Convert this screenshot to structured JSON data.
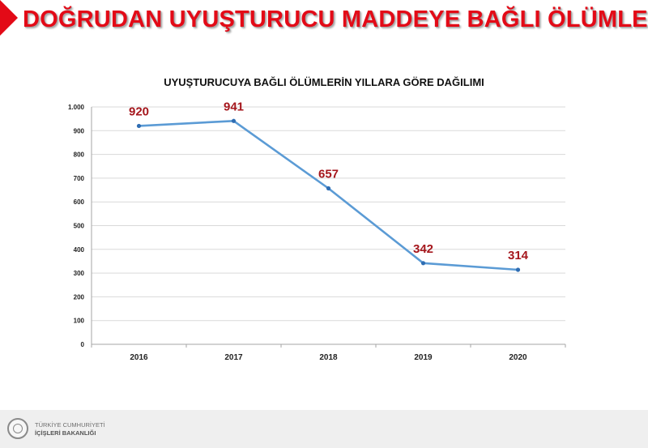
{
  "slide": {
    "title": "DOĞRUDAN UYUŞTURUCU MADDEYE BAĞLI ÖLÜMLER",
    "accent_color": "#e30a17"
  },
  "footer": {
    "line1": "TÜRKİYE CUMHURİYETİ",
    "line2": "İÇİŞLERİ BAKANLIĞI",
    "logo_icon": "ministry-seal-icon"
  },
  "chart_data": {
    "type": "line",
    "title": "UYUŞTURUCUYA BAĞLI ÖLÜMLERİN YILLARA GÖRE DAĞILIMI",
    "categories": [
      "2016",
      "2017",
      "2018",
      "2019",
      "2020"
    ],
    "series": [
      {
        "values": [
          920,
          941,
          657,
          342,
          314
        ],
        "color": "#5b9bd5"
      }
    ],
    "data_labels": [
      "920",
      "941",
      "657",
      "342",
      "314"
    ],
    "data_label_color": "#a5161c",
    "ylim": [
      0,
      1000
    ],
    "yticks": [
      0,
      100,
      200,
      300,
      400,
      500,
      600,
      700,
      800,
      900,
      1000
    ],
    "ytick_labels": [
      "0",
      "100",
      "200",
      "300",
      "400",
      "500",
      "600",
      "700",
      "800",
      "900",
      "1.000"
    ],
    "xlabel": "",
    "ylabel": "",
    "grid": true,
    "legend": "none"
  }
}
